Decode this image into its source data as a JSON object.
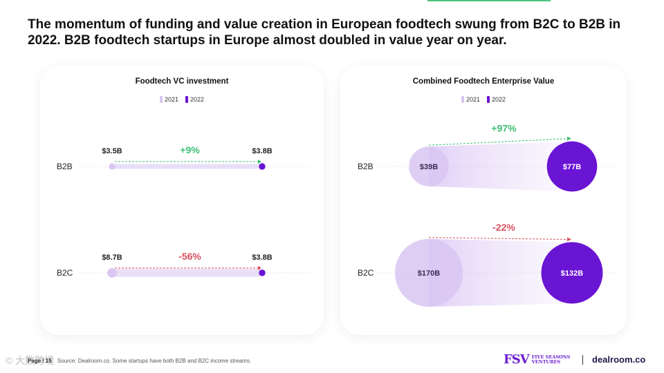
{
  "title": "The momentum of funding and value creation in European foodtech swung from B2C to B2B in 2022. B2B foodtech startups in Europe almost doubled in value year on year.",
  "colors": {
    "y2021": "#d9c6f2",
    "y2022": "#6a14d4",
    "positive": "#3cbe73",
    "negative": "#d8505f",
    "accent_bar": "#4cc37a"
  },
  "legend": [
    "2021",
    "2022"
  ],
  "chart_data": [
    {
      "type": "dumbbell",
      "title": "Foodtech VC investment",
      "unit": "$B",
      "categories": [
        "B2B",
        "B2C"
      ],
      "series": [
        {
          "name": "2021",
          "values": [
            3.5,
            8.7
          ]
        },
        {
          "name": "2022",
          "values": [
            3.8,
            3.8
          ]
        }
      ],
      "value_labels": {
        "2021": [
          "$3.5B",
          "$8.7B"
        ],
        "2022": [
          "$3.8B",
          "$3.8B"
        ]
      },
      "change_labels": [
        "+9%",
        "-56%"
      ],
      "changes": [
        9,
        -56
      ]
    },
    {
      "type": "bubble",
      "title": "Combined Foodtech Enterprise Value",
      "unit": "$B",
      "categories": [
        "B2B",
        "B2C"
      ],
      "series": [
        {
          "name": "2021",
          "values": [
            39,
            170
          ]
        },
        {
          "name": "2022",
          "values": [
            77,
            132
          ]
        }
      ],
      "value_labels": {
        "2021": [
          "$39B",
          "$170B"
        ],
        "2022": [
          "$77B",
          "$132B"
        ]
      },
      "change_labels": [
        "+97%",
        "-22%"
      ],
      "changes": [
        97,
        -22
      ]
    }
  ],
  "footer": {
    "page": "Page / 15",
    "source": "Source: Dealroom.co. Some startups have both B2B and B2C income streams."
  },
  "logos": {
    "fsv_mark": "FSV",
    "fsv_line1": "FIVE SEASONS",
    "fsv_line2": "VENTURES",
    "dealroom": "dealroom.co"
  },
  "watermark": "© 大数跨境"
}
